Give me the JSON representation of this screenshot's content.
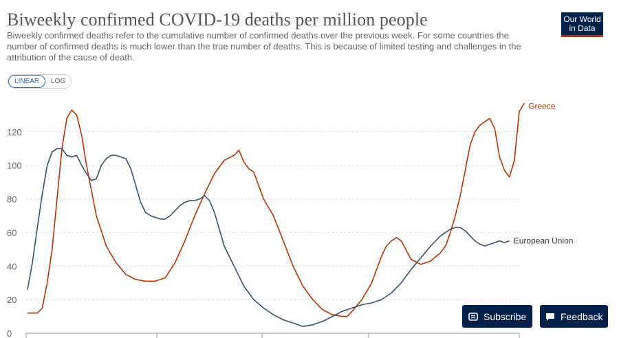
{
  "header": {
    "title": "Biweekly confirmed COVID-19 deaths per million people",
    "subtitle": "Biweekly confirmed deaths refer to the cumulative number of confirmed deaths over the previous week. For some countries the number of confirmed deaths is much lower than the true number of deaths. This is because of limited testing and challenges in the attribution of the cause of death.",
    "logo_line1": "Our World",
    "logo_line2": "in Data"
  },
  "controls": {
    "linear_label": "LINEAR",
    "log_label": "LOG",
    "active": "linear"
  },
  "buttons": {
    "subscribe_label": "Subscribe",
    "subscribe_icon": "newsletter-icon",
    "feedback_label": "Feedback",
    "feedback_icon": "speech-bubble-icon"
  },
  "colors": {
    "greece": "#b13507",
    "eu": "#3c4e66",
    "accent": "#002147",
    "logo_bar": "#ce261e"
  },
  "chart_data": {
    "type": "line",
    "title": "Biweekly confirmed COVID-19 deaths per million people",
    "xlabel": "",
    "ylabel": "",
    "ylim": [
      0,
      140
    ],
    "yticks": [
      0,
      20,
      40,
      60,
      80,
      100,
      120
    ],
    "grid": "horizontal-dashed",
    "legend": "inline-right",
    "x_index_range": [
      0,
      100
    ],
    "series": [
      {
        "name": "Greece",
        "color": "#b13507",
        "points": [
          [
            0,
            12
          ],
          [
            2,
            12
          ],
          [
            3,
            15
          ],
          [
            4,
            30
          ],
          [
            5,
            50
          ],
          [
            6,
            80
          ],
          [
            7,
            110
          ],
          [
            8,
            128
          ],
          [
            9,
            133
          ],
          [
            10,
            130
          ],
          [
            11,
            118
          ],
          [
            12,
            100
          ],
          [
            14,
            70
          ],
          [
            16,
            52
          ],
          [
            18,
            42
          ],
          [
            20,
            35
          ],
          [
            22,
            32
          ],
          [
            24,
            31
          ],
          [
            26,
            31
          ],
          [
            28,
            33
          ],
          [
            30,
            42
          ],
          [
            32,
            55
          ],
          [
            34,
            70
          ],
          [
            36,
            83
          ],
          [
            38,
            95
          ],
          [
            40,
            103
          ],
          [
            42,
            106
          ],
          [
            43,
            109
          ],
          [
            44,
            102
          ],
          [
            45,
            98
          ],
          [
            46,
            96
          ],
          [
            47,
            88
          ],
          [
            48,
            80
          ],
          [
            50,
            70
          ],
          [
            52,
            55
          ],
          [
            54,
            40
          ],
          [
            56,
            28
          ],
          [
            58,
            20
          ],
          [
            60,
            14
          ],
          [
            62,
            11
          ],
          [
            64,
            10
          ],
          [
            65,
            10
          ],
          [
            66,
            13
          ],
          [
            68,
            20
          ],
          [
            70,
            30
          ],
          [
            71,
            38
          ],
          [
            72,
            46
          ],
          [
            73,
            52
          ],
          [
            74,
            55
          ],
          [
            75,
            57
          ],
          [
            76,
            55
          ],
          [
            78,
            44
          ],
          [
            80,
            41
          ],
          [
            82,
            43
          ],
          [
            84,
            48
          ],
          [
            85,
            52
          ],
          [
            86,
            60
          ],
          [
            87,
            70
          ],
          [
            88,
            82
          ],
          [
            89,
            97
          ],
          [
            90,
            112
          ],
          [
            91,
            120
          ],
          [
            92,
            124
          ],
          [
            93,
            126
          ],
          [
            94,
            128
          ],
          [
            95,
            122
          ],
          [
            96,
            105
          ],
          [
            97,
            97
          ],
          [
            98,
            93
          ],
          [
            99,
            103
          ],
          [
            100,
            132
          ],
          [
            101,
            137
          ]
        ]
      },
      {
        "name": "European Union",
        "color": "#3c4e66",
        "points": [
          [
            0,
            26
          ],
          [
            1,
            42
          ],
          [
            2,
            63
          ],
          [
            3,
            83
          ],
          [
            4,
            100
          ],
          [
            5,
            108
          ],
          [
            6,
            110
          ],
          [
            7,
            110
          ],
          [
            8,
            106
          ],
          [
            9,
            105
          ],
          [
            10,
            106
          ],
          [
            11,
            100
          ],
          [
            12,
            95
          ],
          [
            13,
            91
          ],
          [
            14,
            92
          ],
          [
            15,
            100
          ],
          [
            16,
            104
          ],
          [
            17,
            106
          ],
          [
            18,
            106
          ],
          [
            19,
            105
          ],
          [
            20,
            104
          ],
          [
            21,
            98
          ],
          [
            22,
            88
          ],
          [
            23,
            78
          ],
          [
            24,
            72
          ],
          [
            25,
            70
          ],
          [
            26,
            69
          ],
          [
            27,
            68
          ],
          [
            28,
            68
          ],
          [
            29,
            70
          ],
          [
            30,
            73
          ],
          [
            31,
            76
          ],
          [
            32,
            78
          ],
          [
            33,
            79
          ],
          [
            34,
            79
          ],
          [
            35,
            80
          ],
          [
            36,
            82
          ],
          [
            37,
            79
          ],
          [
            38,
            72
          ],
          [
            39,
            62
          ],
          [
            40,
            52
          ],
          [
            42,
            40
          ],
          [
            44,
            28
          ],
          [
            46,
            20
          ],
          [
            48,
            15
          ],
          [
            50,
            11
          ],
          [
            52,
            8
          ],
          [
            54,
            6
          ],
          [
            55,
            5
          ],
          [
            56,
            4
          ],
          [
            58,
            5
          ],
          [
            60,
            7
          ],
          [
            62,
            10
          ],
          [
            64,
            13
          ],
          [
            66,
            15
          ],
          [
            68,
            17
          ],
          [
            70,
            18
          ],
          [
            72,
            20
          ],
          [
            74,
            24
          ],
          [
            76,
            30
          ],
          [
            78,
            38
          ],
          [
            80,
            45
          ],
          [
            82,
            52
          ],
          [
            84,
            58
          ],
          [
            86,
            62
          ],
          [
            87,
            63
          ],
          [
            88,
            63
          ],
          [
            89,
            61
          ],
          [
            90,
            58
          ],
          [
            91,
            55
          ],
          [
            92,
            53
          ],
          [
            93,
            52
          ],
          [
            94,
            53
          ],
          [
            95,
            54
          ],
          [
            96,
            55
          ],
          [
            97,
            54
          ],
          [
            98,
            55
          ]
        ]
      }
    ]
  }
}
